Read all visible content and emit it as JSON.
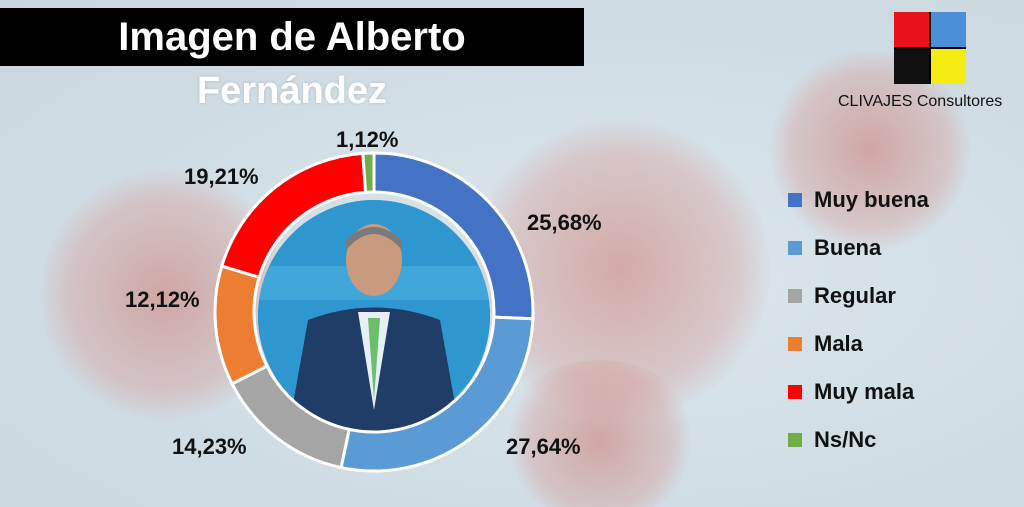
{
  "title": {
    "line1": "Imagen de Alberto",
    "line2": "Fernández"
  },
  "brand": {
    "name": "CLIVAJES Consultores",
    "colors": [
      "#e8121b",
      "#4a90d9",
      "#111111",
      "#f5ec14"
    ]
  },
  "chart_data": {
    "type": "pie",
    "categories": [
      "Muy buena",
      "Buena",
      "Regular",
      "Mala",
      "Muy mala",
      "Ns/Nc"
    ],
    "values": [
      25.68,
      27.64,
      14.23,
      12.12,
      19.21,
      1.12
    ],
    "labels": [
      "25,68%",
      "27,64%",
      "14,23%",
      "12,12%",
      "19,21%",
      "1,12%"
    ],
    "colors": [
      "#4472c4",
      "#5b9bd5",
      "#a5a5a5",
      "#ed7d31",
      "#ff0000",
      "#70ad47"
    ],
    "legend_position": "right",
    "style": "donut"
  }
}
